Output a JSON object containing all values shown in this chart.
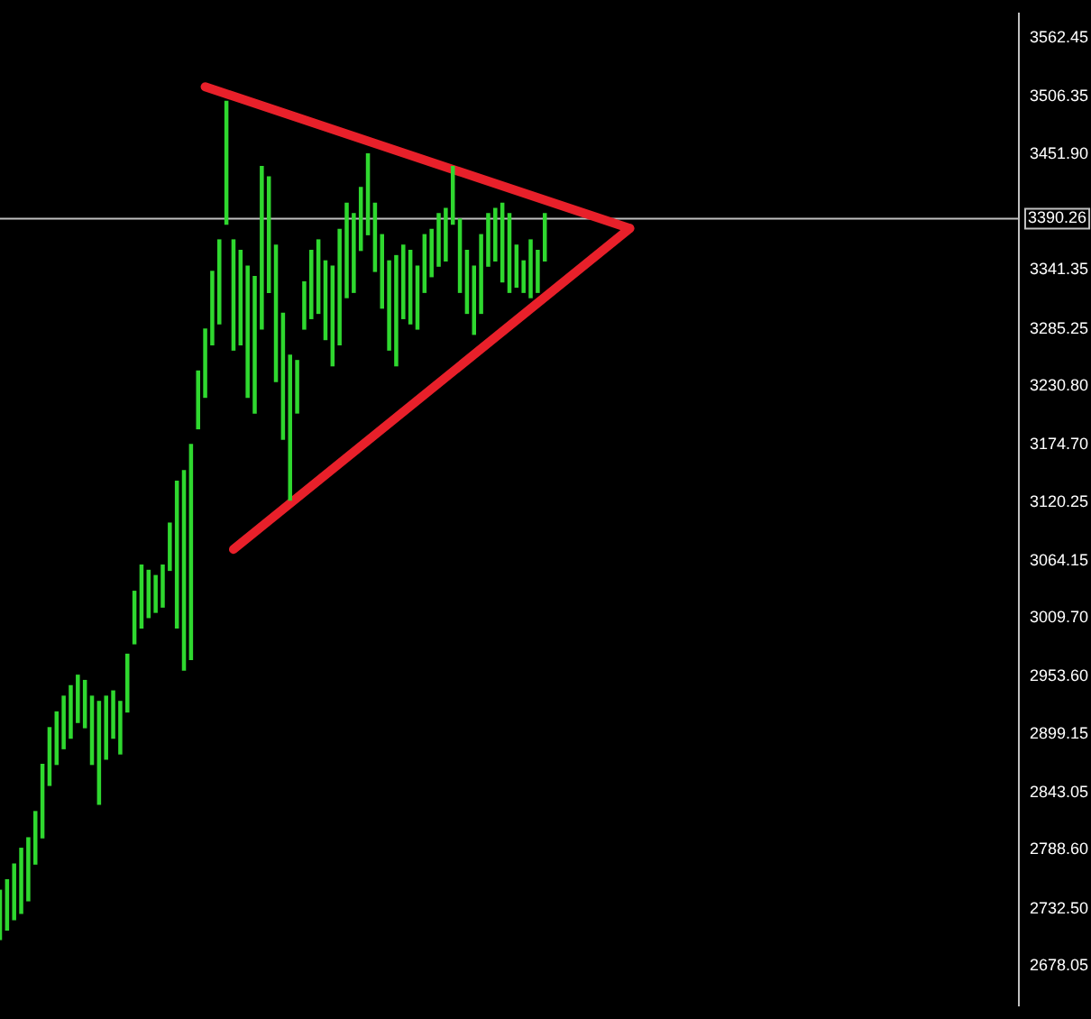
{
  "chart_data": {
    "type": "bar",
    "categories": [
      null,
      null,
      null,
      null,
      null,
      null,
      null,
      null,
      null,
      null,
      null,
      null,
      null,
      null,
      null,
      null,
      null,
      null,
      null,
      null,
      null,
      null,
      null,
      null,
      null,
      null,
      null,
      null,
      null,
      null,
      null,
      null,
      null,
      null,
      null,
      null,
      null,
      null,
      null,
      null,
      null,
      null,
      null,
      null,
      null,
      null,
      null,
      null,
      null,
      null,
      null,
      null,
      null,
      null,
      null,
      null,
      null,
      null,
      null,
      null,
      null,
      null,
      null,
      null,
      null,
      null,
      null,
      null,
      null,
      null,
      null,
      null,
      null,
      null,
      null,
      null,
      null,
      null,
      null,
      null,
      null,
      null,
      null,
      null,
      null,
      null,
      null,
      null,
      null,
      null,
      null,
      null,
      null,
      null,
      null,
      null,
      null,
      null,
      null,
      null,
      null,
      null,
      null,
      null,
      null,
      null,
      null,
      null,
      null,
      null,
      null,
      null,
      null,
      null,
      null,
      null,
      null,
      null,
      null,
      null,
      null,
      null,
      null,
      null,
      null,
      null,
      null,
      null,
      null,
      null,
      null,
      null,
      null,
      null,
      null,
      null,
      null,
      null,
      null,
      null,
      null,
      null,
      null,
      null,
      null
    ],
    "ylim": [
      2640,
      3586
    ],
    "yticks": [
      2678.05,
      {
        "value": 2732.5,
        "label": "2732.50"
      },
      {
        "value": 2788.6,
        "label": "2788.60"
      },
      2843.05,
      2899.15,
      {
        "value": 2953.6,
        "label": "2953.60"
      },
      {
        "value": 3009.7,
        "label": "3009.70"
      },
      3064.15,
      3120.25,
      {
        "value": 3174.7,
        "label": "3174.70"
      },
      {
        "value": 3230.8,
        "label": "3230.80"
      },
      3285.25,
      3341.35,
      {
        "value": 3451.9,
        "label": "3451.90"
      },
      3506.35,
      3562.45
    ],
    "tick_labels": "y",
    "grid": false,
    "legend": false,
    "ref_lines": [
      {
        "axis": "y",
        "value": 3390.26,
        "label": "3390.26",
        "color": "#c0c0c0"
      }
    ],
    "series": [
      {
        "color": "#2fd82f",
        "base": [
          2703,
          2712,
          2722,
          2728,
          2740,
          2775,
          2800,
          2850,
          2870,
          2885,
          2895,
          2910,
          2905,
          2870,
          2832,
          2875,
          2895,
          2880,
          2920,
          2985,
          3000,
          3010,
          3015,
          3020,
          3055,
          3000,
          2960,
          2970,
          3190,
          3220,
          3270,
          3290,
          3385,
          3265,
          3270,
          3220,
          3205,
          3285,
          3320,
          3235,
          3180,
          3122,
          3205,
          3285,
          3295,
          3300,
          3275,
          3250,
          3270,
          3315,
          3320,
          3360,
          3375,
          3340,
          3305,
          3265,
          3250,
          3295,
          3290,
          3285,
          3320,
          3335,
          3345,
          3350,
          3385,
          3320,
          3300,
          3280,
          3300,
          3345,
          3350,
          3330,
          3320,
          3325,
          3320,
          3315,
          3320,
          3350,
          null,
          null,
          null,
          null,
          null,
          null,
          null,
          null,
          null,
          null,
          null,
          null,
          null,
          null,
          null,
          null,
          null,
          null,
          null,
          null,
          null,
          null,
          null,
          null,
          null,
          null,
          null,
          null,
          null,
          null,
          null,
          null,
          null,
          null,
          null,
          null,
          null,
          null,
          null,
          null,
          null,
          null,
          null,
          null,
          null,
          null,
          null,
          null,
          null,
          null,
          null,
          null,
          null,
          null,
          null,
          null,
          null,
          null,
          null,
          null,
          null,
          null,
          null,
          null,
          null,
          null,
          null
        ],
        "values": [
          47,
          48,
          53,
          62,
          60,
          50,
          70,
          55,
          50,
          50,
          50,
          45,
          45,
          65,
          98,
          60,
          45,
          50,
          55,
          50,
          60,
          45,
          35,
          40,
          45,
          140,
          190,
          205,
          55,
          65,
          70,
          80,
          117,
          105,
          90,
          125,
          130,
          155,
          110,
          130,
          120,
          138,
          50,
          45,
          65,
          70,
          75,
          95,
          110,
          90,
          75,
          60,
          77,
          65,
          70,
          85,
          105,
          70,
          70,
          60,
          55,
          45,
          50,
          50,
          55,
          70,
          60,
          65,
          75,
          50,
          50,
          75,
          75,
          40,
          30,
          55,
          40,
          45,
          null,
          null,
          null,
          null,
          null,
          null,
          null,
          null,
          null,
          null,
          null,
          null,
          null,
          null,
          null,
          null,
          null,
          null,
          null,
          null,
          null,
          null,
          null,
          null,
          null,
          null,
          null,
          null,
          null,
          null,
          null,
          null,
          null,
          null,
          null,
          null,
          null,
          null,
          null,
          null,
          null,
          null,
          null,
          null,
          null,
          null,
          null,
          null,
          null,
          null,
          null,
          null,
          null,
          null,
          null,
          null,
          null,
          null,
          null,
          null,
          null,
          null,
          null,
          null,
          null,
          null,
          null
        ]
      },
      {
        "type": "line",
        "color": "#e8202a",
        "values": [
          null,
          null,
          null,
          null,
          null,
          null,
          null,
          null,
          null,
          null,
          null,
          null,
          null,
          null,
          null,
          null,
          null,
          null,
          null,
          null,
          null,
          null,
          null,
          null,
          null,
          null,
          null,
          null,
          null,
          3516,
          null,
          null,
          null,
          null,
          null,
          null,
          null,
          null,
          null,
          null,
          null,
          null,
          null,
          null,
          null,
          null,
          null,
          null,
          null,
          null,
          null,
          null,
          null,
          null,
          null,
          null,
          null,
          null,
          null,
          null,
          null,
          null,
          null,
          null,
          null,
          null,
          null,
          null,
          null,
          null,
          null,
          null,
          null,
          null,
          null,
          null,
          null,
          null,
          null,
          null,
          null,
          null,
          null,
          null,
          null,
          null,
          null,
          null,
          null,
          3381,
          null,
          null,
          null,
          null,
          null,
          null,
          null,
          null,
          null,
          null,
          null,
          null,
          null,
          null,
          null,
          null,
          null,
          null,
          null,
          null,
          null,
          null,
          null,
          null,
          null,
          null,
          null,
          null,
          null,
          null,
          null,
          null,
          null,
          null,
          null,
          null,
          null,
          null,
          null,
          null,
          null,
          null,
          null,
          null,
          null,
          null,
          null,
          null,
          null,
          null,
          null,
          null,
          null,
          null,
          null
        ]
      },
      {
        "type": "line",
        "color": "#e8202a",
        "values": [
          null,
          null,
          null,
          null,
          null,
          null,
          null,
          null,
          null,
          null,
          null,
          null,
          null,
          null,
          null,
          null,
          null,
          null,
          null,
          null,
          null,
          null,
          null,
          null,
          null,
          null,
          null,
          null,
          null,
          null,
          null,
          null,
          null,
          3075,
          null,
          null,
          null,
          null,
          null,
          null,
          null,
          null,
          null,
          null,
          null,
          null,
          null,
          null,
          null,
          null,
          null,
          null,
          null,
          null,
          null,
          null,
          null,
          null,
          null,
          null,
          null,
          null,
          null,
          null,
          null,
          null,
          null,
          null,
          null,
          null,
          null,
          null,
          null,
          null,
          null,
          null,
          null,
          null,
          null,
          null,
          null,
          null,
          null,
          null,
          null,
          null,
          null,
          null,
          null,
          3381,
          null,
          null,
          null,
          null,
          null,
          null,
          null,
          null,
          null,
          null,
          null,
          null,
          null,
          null,
          null,
          null,
          null,
          null,
          null,
          null,
          null,
          null,
          null,
          null,
          null,
          null,
          null,
          null,
          null,
          null,
          null,
          null,
          null,
          null,
          null,
          null,
          null,
          null,
          null,
          null,
          null,
          null,
          null,
          null,
          null,
          null,
          null,
          null,
          null,
          null,
          null,
          null,
          null,
          null,
          null
        ]
      }
    ]
  }
}
